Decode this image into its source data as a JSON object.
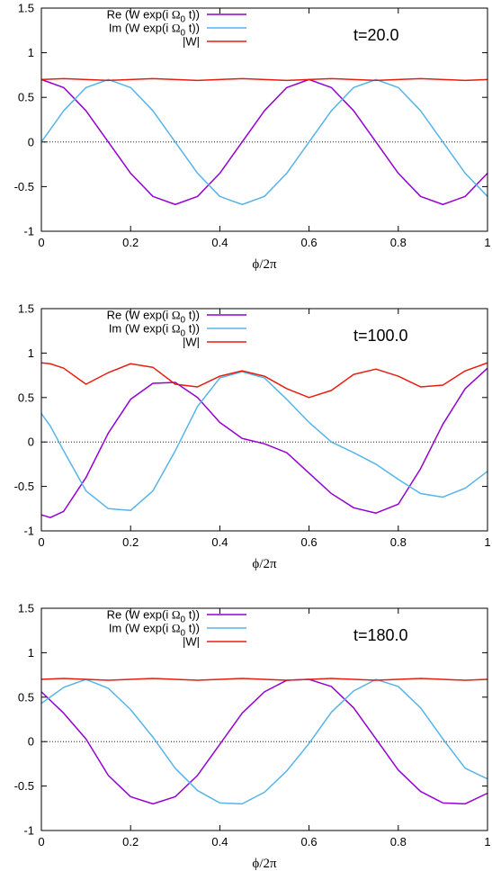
{
  "chart_data": [
    {
      "type": "line",
      "annotation": "t=20.0",
      "xlabel": "ϕ/2π",
      "xlim": [
        0,
        1
      ],
      "ylim": [
        -1,
        1.5
      ],
      "xticks": [
        "0",
        "0.2",
        "0.4",
        "0.6",
        "0.8",
        "1"
      ],
      "yticks": [
        "-1",
        "-0.5",
        "0",
        "0.5",
        "1",
        "1.5"
      ],
      "legend_position": "top-left",
      "legend": {
        "re": {
          "pre": "Re (W exp(i ",
          "omega": "Ω",
          "sub": "0",
          "post": " t))"
        },
        "im": {
          "pre": "Im (W exp(i ",
          "omega": "Ω",
          "sub": "0",
          "post": " t))"
        },
        "abs": "|W|"
      },
      "x": [
        0,
        0.05,
        0.1,
        0.15,
        0.2,
        0.25,
        0.3,
        0.35,
        0.4,
        0.45,
        0.5,
        0.55,
        0.6,
        0.65,
        0.7,
        0.75,
        0.8,
        0.85,
        0.9,
        0.95,
        1
      ],
      "series": [
        {
          "key": "re",
          "color": "#9400d3",
          "values": [
            0.7,
            0.61,
            0.35,
            0.0,
            -0.35,
            -0.61,
            -0.7,
            -0.61,
            -0.35,
            0.0,
            0.35,
            0.61,
            0.7,
            0.61,
            0.35,
            0.0,
            -0.35,
            -0.61,
            -0.7,
            -0.61,
            -0.35
          ]
        },
        {
          "key": "im",
          "color": "#56b4e9",
          "values": [
            0.0,
            0.35,
            0.61,
            0.7,
            0.61,
            0.35,
            0.0,
            -0.35,
            -0.61,
            -0.7,
            -0.61,
            -0.35,
            0.0,
            0.35,
            0.61,
            0.7,
            0.61,
            0.35,
            0.0,
            -0.35,
            -0.61
          ]
        },
        {
          "key": "abs",
          "color": "#e51e10",
          "values": [
            0.7,
            0.71,
            0.7,
            0.69,
            0.7,
            0.71,
            0.7,
            0.69,
            0.7,
            0.71,
            0.7,
            0.69,
            0.7,
            0.71,
            0.7,
            0.69,
            0.7,
            0.71,
            0.7,
            0.69,
            0.7
          ]
        }
      ]
    },
    {
      "type": "line",
      "annotation": "t=100.0",
      "xlabel": "ϕ/2π",
      "xlim": [
        0,
        1
      ],
      "ylim": [
        -1,
        1.5
      ],
      "xticks": [
        "0",
        "0.2",
        "0.4",
        "0.6",
        "0.8",
        "1"
      ],
      "yticks": [
        "-1",
        "-0.5",
        "0",
        "0.5",
        "1",
        "1.5"
      ],
      "legend_position": "top-left",
      "legend": {
        "re": {
          "pre": "Re (W exp(i ",
          "omega": "Ω",
          "sub": "0",
          "post": " t))"
        },
        "im": {
          "pre": "Im (W exp(i ",
          "omega": "Ω",
          "sub": "0",
          "post": " t))"
        },
        "abs": "|W|"
      },
      "x": [
        0,
        0.02,
        0.05,
        0.1,
        0.15,
        0.2,
        0.25,
        0.3,
        0.35,
        0.4,
        0.45,
        0.5,
        0.55,
        0.6,
        0.65,
        0.7,
        0.75,
        0.8,
        0.85,
        0.9,
        0.95,
        1
      ],
      "series": [
        {
          "key": "re",
          "color": "#9400d3",
          "values": [
            -0.82,
            -0.85,
            -0.78,
            -0.4,
            0.1,
            0.48,
            0.66,
            0.67,
            0.5,
            0.22,
            0.04,
            -0.02,
            -0.12,
            -0.35,
            -0.58,
            -0.74,
            -0.8,
            -0.7,
            -0.3,
            0.2,
            0.6,
            0.83
          ]
        },
        {
          "key": "im",
          "color": "#56b4e9",
          "values": [
            0.32,
            0.18,
            -0.1,
            -0.55,
            -0.75,
            -0.77,
            -0.55,
            -0.1,
            0.4,
            0.72,
            0.79,
            0.72,
            0.48,
            0.22,
            0.0,
            -0.12,
            -0.25,
            -0.42,
            -0.58,
            -0.62,
            -0.52,
            -0.33
          ]
        },
        {
          "key": "abs",
          "color": "#e51e10",
          "values": [
            0.89,
            0.88,
            0.83,
            0.65,
            0.78,
            0.88,
            0.84,
            0.65,
            0.62,
            0.74,
            0.8,
            0.74,
            0.6,
            0.5,
            0.58,
            0.76,
            0.82,
            0.74,
            0.62,
            0.64,
            0.8,
            0.89
          ]
        }
      ]
    },
    {
      "type": "line",
      "annotation": "t=180.0",
      "xlabel": "ϕ/2π",
      "xlim": [
        0,
        1
      ],
      "ylim": [
        -1,
        1.5
      ],
      "xticks": [
        "0",
        "0.2",
        "0.4",
        "0.6",
        "0.8",
        "1"
      ],
      "yticks": [
        "-1",
        "-0.5",
        "0",
        "0.5",
        "1",
        "1.5"
      ],
      "legend_position": "top-left",
      "legend": {
        "re": {
          "pre": "Re (W exp(i ",
          "omega": "Ω",
          "sub": "0",
          "post": " t))"
        },
        "im": {
          "pre": "Im (W exp(i ",
          "omega": "Ω",
          "sub": "0",
          "post": " t))"
        },
        "abs": "|W|"
      },
      "x": [
        0,
        0.05,
        0.1,
        0.15,
        0.2,
        0.25,
        0.3,
        0.35,
        0.4,
        0.45,
        0.5,
        0.55,
        0.6,
        0.65,
        0.7,
        0.75,
        0.8,
        0.85,
        0.9,
        0.95,
        1
      ],
      "series": [
        {
          "key": "re",
          "color": "#9400d3",
          "values": [
            0.56,
            0.32,
            0.03,
            -0.38,
            -0.62,
            -0.7,
            -0.62,
            -0.38,
            -0.03,
            0.32,
            0.56,
            0.69,
            0.7,
            0.62,
            0.38,
            0.03,
            -0.32,
            -0.56,
            -0.69,
            -0.7,
            -0.58
          ]
        },
        {
          "key": "im",
          "color": "#56b4e9",
          "values": [
            0.43,
            0.61,
            0.7,
            0.6,
            0.36,
            0.05,
            -0.3,
            -0.55,
            -0.69,
            -0.7,
            -0.57,
            -0.33,
            -0.02,
            0.33,
            0.57,
            0.7,
            0.62,
            0.38,
            0.03,
            -0.3,
            -0.42
          ]
        },
        {
          "key": "abs",
          "color": "#e51e10",
          "values": [
            0.7,
            0.71,
            0.7,
            0.69,
            0.7,
            0.71,
            0.7,
            0.69,
            0.7,
            0.71,
            0.7,
            0.69,
            0.7,
            0.71,
            0.7,
            0.69,
            0.7,
            0.71,
            0.7,
            0.69,
            0.7
          ]
        }
      ]
    }
  ]
}
